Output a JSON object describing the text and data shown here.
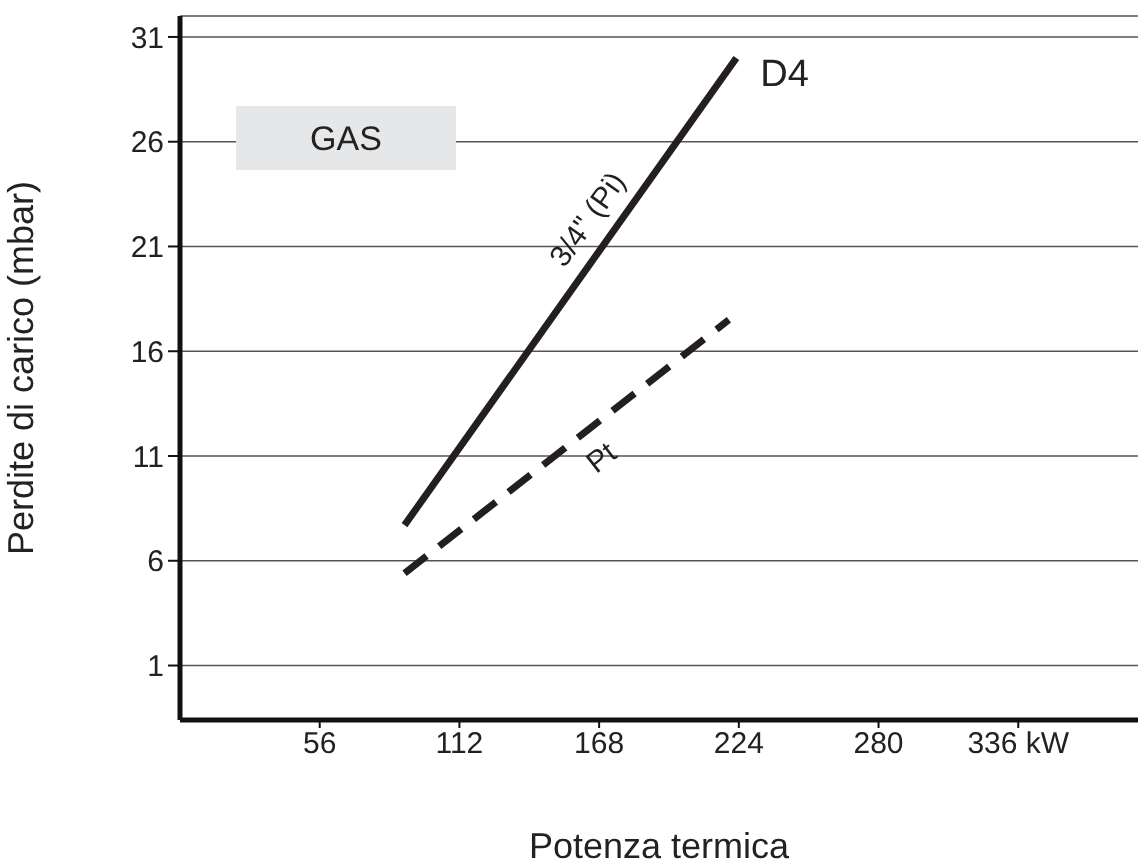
{
  "chart_data": {
    "type": "line",
    "xlabel": "Potenza termica",
    "ylabel": "Perdite di carico (mbar)",
    "xlim": [
      0,
      384
    ],
    "xticks": [
      56,
      112,
      168,
      224,
      280,
      {
        "value": 336,
        "label": "336  kW"
      }
    ],
    "ylim": [
      -1.6,
      32
    ],
    "yticks": [
      1,
      6,
      11,
      16,
      21,
      26,
      31
    ],
    "grid": "y",
    "marker": "none",
    "series": [
      {
        "name": "3/4\" (Pi)",
        "color": "#231f20",
        "x": [
          90,
          223
        ],
        "values": [
          7.7,
          30
        ],
        "line_style": "solid"
      },
      {
        "name": "Pt",
        "color": "#231f20",
        "x": [
          90,
          220
        ],
        "values": [
          5.4,
          17.5
        ],
        "line_style": "dashed"
      }
    ],
    "annotations": [
      "GAS",
      "D4"
    ]
  }
}
